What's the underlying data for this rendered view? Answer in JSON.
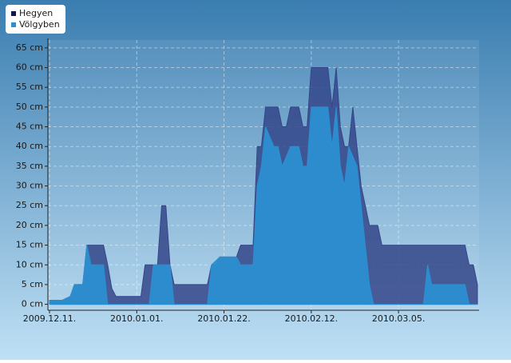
{
  "chart_data": {
    "type": "area",
    "xlim": [
      "2009-12-11",
      "2010-03-24"
    ],
    "xticks": [
      {
        "value": "2009-12-11",
        "label": "2009.12.11."
      },
      {
        "value": "2010-01-01",
        "label": "2010.01.01."
      },
      {
        "value": "2010-01-22",
        "label": "2010.01.22."
      },
      {
        "value": "2010-02-12",
        "label": "2010.02.12."
      },
      {
        "value": "2010-03-05",
        "label": "2010.03.05."
      }
    ],
    "ylim": [
      -1.5,
      67
    ],
    "yticks": [
      {
        "value": 0,
        "label": "0 cm"
      },
      {
        "value": 5,
        "label": "5 cm"
      },
      {
        "value": 10,
        "label": "10 cm"
      },
      {
        "value": 15,
        "label": "15 cm"
      },
      {
        "value": 20,
        "label": "20 cm"
      },
      {
        "value": 25,
        "label": "25 cm"
      },
      {
        "value": 30,
        "label": "30 cm"
      },
      {
        "value": 35,
        "label": "35 cm"
      },
      {
        "value": 40,
        "label": "40 cm"
      },
      {
        "value": 45,
        "label": "45 cm"
      },
      {
        "value": 50,
        "label": "50 cm"
      },
      {
        "value": 55,
        "label": "55 cm"
      },
      {
        "value": 60,
        "label": "60 cm"
      },
      {
        "value": 65,
        "label": "65 cm"
      }
    ],
    "grid": true,
    "legend": "top-left",
    "series": [
      {
        "name": "Hegyen",
        "color": "#34468a",
        "x": [
          "2009-12-11",
          "2009-12-14",
          "2009-12-16",
          "2009-12-17",
          "2009-12-19",
          "2009-12-20",
          "2009-12-24",
          "2009-12-25",
          "2009-12-26",
          "2009-12-27",
          "2010-01-02",
          "2010-01-03",
          "2010-01-06",
          "2010-01-07",
          "2010-01-08",
          "2010-01-09",
          "2010-01-10",
          "2010-01-18",
          "2010-01-19",
          "2010-01-20",
          "2010-01-21",
          "2010-01-25",
          "2010-01-26",
          "2010-01-29",
          "2010-01-30",
          "2010-01-31",
          "2010-02-01",
          "2010-02-04",
          "2010-02-05",
          "2010-02-06",
          "2010-02-07",
          "2010-02-09",
          "2010-02-10",
          "2010-02-11",
          "2010-02-12",
          "2010-02-16",
          "2010-02-17",
          "2010-02-18",
          "2010-02-19",
          "2010-02-20",
          "2010-02-21",
          "2010-02-22",
          "2010-02-23",
          "2010-02-24",
          "2010-02-26",
          "2010-02-28",
          "2010-03-01",
          "2010-03-21",
          "2010-03-22",
          "2010-03-23",
          "2010-03-24"
        ],
        "values": [
          1,
          1,
          2,
          5,
          5,
          15,
          15,
          10,
          4,
          2,
          2,
          10,
          10,
          25,
          25,
          10,
          5,
          5,
          10,
          10,
          12,
          12,
          15,
          15,
          40,
          40,
          50,
          50,
          45,
          45,
          50,
          50,
          45,
          45,
          60,
          60,
          50,
          60,
          45,
          40,
          40,
          50,
          40,
          30,
          20,
          20,
          15,
          15,
          10,
          10,
          5
        ]
      },
      {
        "name": "Völgyben",
        "color": "#2b8fd0",
        "x": [
          "2009-12-11",
          "2009-12-14",
          "2009-12-16",
          "2009-12-17",
          "2009-12-19",
          "2009-12-20",
          "2009-12-21",
          "2009-12-24",
          "2009-12-25",
          "2010-01-04",
          "2010-01-05",
          "2010-01-09",
          "2010-01-10",
          "2010-01-18",
          "2010-01-19",
          "2010-01-21",
          "2010-01-25",
          "2010-01-26",
          "2010-01-29",
          "2010-01-30",
          "2010-01-31",
          "2010-02-01",
          "2010-02-03",
          "2010-02-04",
          "2010-02-05",
          "2010-02-07",
          "2010-02-09",
          "2010-02-10",
          "2010-02-11",
          "2010-02-12",
          "2010-02-16",
          "2010-02-17",
          "2010-02-18",
          "2010-02-19",
          "2010-02-20",
          "2010-02-21",
          "2010-02-23",
          "2010-02-24",
          "2010-02-26",
          "2010-02-27",
          "2010-03-11",
          "2010-03-12",
          "2010-03-13",
          "2010-03-21",
          "2010-03-22",
          "2010-03-24"
        ],
        "values": [
          1,
          1,
          2,
          5,
          5,
          15,
          10,
          10,
          0,
          0,
          10,
          10,
          0,
          0,
          10,
          12,
          12,
          10,
          10,
          30,
          35,
          45,
          40,
          40,
          35,
          40,
          40,
          35,
          35,
          50,
          50,
          40,
          50,
          35,
          30,
          40,
          35,
          25,
          5,
          0,
          0,
          10,
          5,
          5,
          0,
          0
        ]
      }
    ]
  }
}
